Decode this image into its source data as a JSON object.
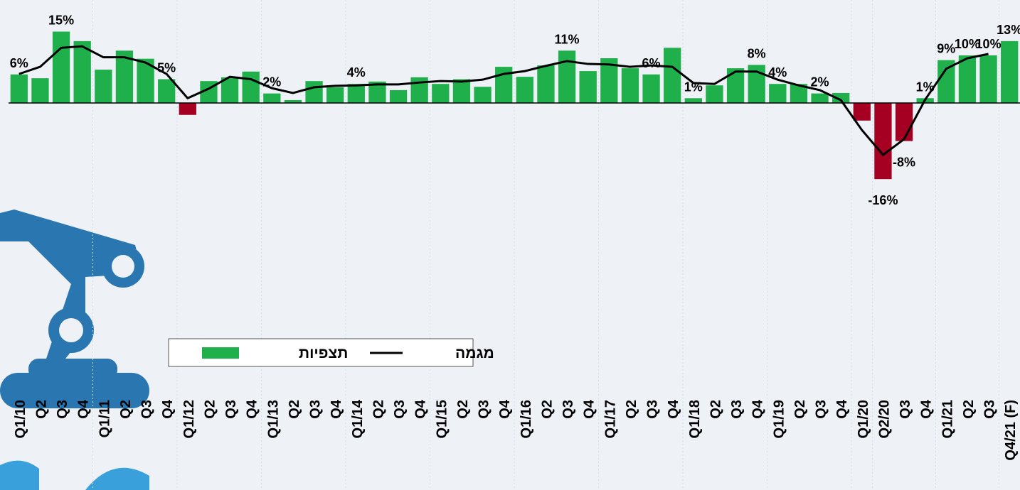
{
  "chart_data": {
    "type": "bar",
    "categories": [
      "Q1/10",
      "Q2",
      "Q3",
      "Q4",
      "Q1/11",
      "Q2",
      "Q3",
      "Q4",
      "Q1/12",
      "Q2",
      "Q3",
      "Q4",
      "Q1/13",
      "Q2",
      "Q3",
      "Q4",
      "Q1/14",
      "Q2",
      "Q3",
      "Q4",
      "Q1/15",
      "Q2",
      "Q3",
      "Q4",
      "Q1/16",
      "Q2",
      "Q3",
      "Q4",
      "Q1/17",
      "Q2",
      "Q3",
      "Q4",
      "Q1/18",
      "Q2",
      "Q3",
      "Q4",
      "Q1/19",
      "Q2",
      "Q3",
      "Q4",
      "Q1/20",
      "Q2/20",
      "Q3",
      "Q4",
      "Q1/21",
      "Q2",
      "Q3",
      "Q4/21 (F)"
    ],
    "series": [
      {
        "name": "תצפיות",
        "type": "bar",
        "color": "#1fb04c",
        "negative_color": "#a50021",
        "values": [
          6,
          5.2,
          15,
          13,
          7,
          11,
          9.3,
          5,
          -2.5,
          4.6,
          5.4,
          6.6,
          2,
          0.6,
          4.6,
          3.3,
          4,
          4.5,
          2.7,
          5.4,
          4,
          5,
          3.4,
          7.6,
          5.5,
          7.9,
          11,
          6.7,
          9.4,
          7.3,
          6,
          11.6,
          1,
          3.7,
          7.3,
          8,
          4,
          4,
          2,
          2.1,
          -3.7,
          -16,
          -8,
          1,
          9,
          10,
          10,
          13
        ],
        "value_labels": [
          "6%",
          null,
          "15%",
          null,
          null,
          null,
          null,
          "5%",
          null,
          null,
          null,
          null,
          "2%",
          null,
          null,
          null,
          "4%",
          null,
          null,
          null,
          null,
          null,
          null,
          null,
          null,
          null,
          "11%",
          null,
          null,
          null,
          "6%",
          null,
          "1%",
          null,
          null,
          "8%",
          "4%",
          null,
          "2%",
          null,
          null,
          "-16%",
          "-8%",
          "1%",
          "9%",
          "10%",
          "10%",
          "13%"
        ]
      },
      {
        "name": "מגמה",
        "type": "line",
        "color": "#000000",
        "values": [
          6.1,
          7.6,
          11.6,
          11.9,
          9.6,
          9.6,
          8.5,
          6.1,
          1,
          3,
          5.5,
          5,
          3.1,
          2.1,
          3.3,
          3.6,
          3.7,
          3.9,
          3.9,
          4.3,
          4.6,
          4.5,
          4.9,
          6.1,
          6.7,
          7.8,
          8.8,
          8.2,
          8.1,
          7.6,
          7.9,
          7.6,
          4.2,
          4,
          6.6,
          6.6,
          4.9,
          3.7,
          2.7,
          0.6,
          -5.7,
          -10.9,
          -7.6,
          0.7,
          7.2,
          9.4,
          10.3,
          null
        ]
      }
    ],
    "ylim": [
      -20,
      20
    ]
  }
}
